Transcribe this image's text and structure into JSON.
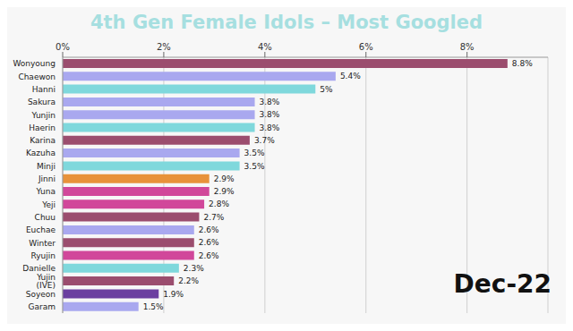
{
  "chart_data": {
    "type": "bar",
    "orientation": "horizontal",
    "title": "4th Gen Female Idols – Most Googled",
    "categories": [
      "Wonyoung",
      "Chaewon",
      "Hanni",
      "Sakura",
      "Yunjin",
      "Haerin",
      "Karina",
      "Kazuha",
      "Minji",
      "Jinni",
      "Yuna",
      "Yeji",
      "Chuu",
      "Euchae",
      "Winter",
      "Ryujin",
      "Danielle",
      "Yujin (IVE)",
      "Soyeon",
      "Garam"
    ],
    "values": [
      8.8,
      5.4,
      5,
      3.8,
      3.8,
      3.8,
      3.7,
      3.5,
      3.5,
      2.9,
      2.9,
      2.8,
      2.7,
      2.6,
      2.6,
      2.6,
      2.3,
      2.2,
      1.9,
      1.5
    ],
    "value_labels": [
      "8.8%",
      "5.4%",
      "5%",
      "3.8%",
      "3.8%",
      "3.8%",
      "3.7%",
      "3.5%",
      "3.5%",
      "2.9%",
      "2.9%",
      "2.8%",
      "2.7%",
      "2.6%",
      "2.6%",
      "2.6%",
      "2.3%",
      "2.2%",
      "1.9%",
      "1.5%"
    ],
    "colors": [
      "#9b4d6e",
      "#a9a8ef",
      "#7fd8dc",
      "#a9a8ef",
      "#a9a8ef",
      "#7fd8dc",
      "#9b4d6e",
      "#a9a8ef",
      "#7fd8dc",
      "#e8923a",
      "#d1479a",
      "#d1479a",
      "#9b4d6e",
      "#a9a8ef",
      "#9b4d6e",
      "#d1479a",
      "#7fd8dc",
      "#9b4d6e",
      "#6b3fa0",
      "#a9a8ef"
    ],
    "xlim": [
      0,
      9.6
    ],
    "xticks": [
      {
        "value": 0,
        "label": "0%"
      },
      {
        "value": 2,
        "label": "2%"
      },
      {
        "value": 4,
        "label": "4%"
      },
      {
        "value": 6,
        "label": "6%"
      },
      {
        "value": 8,
        "label": "8%"
      }
    ],
    "grid": true,
    "data_labels": true,
    "annotations": [
      "Dec-22"
    ]
  }
}
